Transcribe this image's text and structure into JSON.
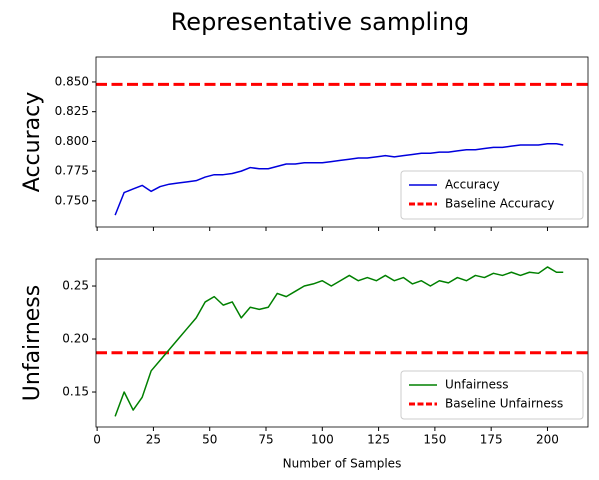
{
  "title": "Representative sampling",
  "chart_data": [
    {
      "type": "line",
      "ylabel": "Accuracy",
      "x": [
        8,
        12,
        16,
        20,
        24,
        28,
        32,
        36,
        40,
        44,
        48,
        52,
        56,
        60,
        64,
        68,
        72,
        76,
        80,
        84,
        88,
        92,
        96,
        100,
        104,
        108,
        112,
        116,
        120,
        124,
        128,
        132,
        136,
        140,
        144,
        148,
        152,
        156,
        160,
        164,
        168,
        172,
        176,
        180,
        184,
        188,
        192,
        196,
        200,
        204,
        207
      ],
      "series": [
        {
          "name": "Accuracy",
          "color": "#0000dd",
          "values": [
            0.738,
            0.757,
            0.76,
            0.763,
            0.758,
            0.762,
            0.764,
            0.765,
            0.766,
            0.767,
            0.77,
            0.772,
            0.772,
            0.773,
            0.775,
            0.778,
            0.777,
            0.777,
            0.779,
            0.781,
            0.781,
            0.782,
            0.782,
            0.782,
            0.783,
            0.784,
            0.785,
            0.786,
            0.786,
            0.787,
            0.788,
            0.787,
            0.788,
            0.789,
            0.79,
            0.79,
            0.791,
            0.791,
            0.792,
            0.793,
            0.793,
            0.794,
            0.795,
            0.795,
            0.796,
            0.797,
            0.797,
            0.797,
            0.798,
            0.798,
            0.797
          ]
        }
      ],
      "hlines": [
        {
          "name": "Baseline Accuracy",
          "color": "#ff0000",
          "value": 0.848
        }
      ],
      "xlim": [
        -0.5,
        218
      ],
      "xticks": [
        0,
        25,
        50,
        75,
        100,
        125,
        150,
        175,
        200
      ],
      "show_xtick_labels": false,
      "ylim": [
        0.728,
        0.871
      ],
      "yticks": [
        {
          "value": 0.75,
          "label": "0.750"
        },
        0.775,
        {
          "value": 0.8,
          "label": "0.800"
        },
        0.825,
        {
          "value": 0.85,
          "label": "0.850"
        }
      ],
      "legend": "lower right"
    },
    {
      "type": "line",
      "ylabel": "Unfairness",
      "xlabel": "Number of Samples",
      "x": [
        8,
        12,
        16,
        20,
        24,
        28,
        32,
        36,
        40,
        44,
        48,
        52,
        56,
        60,
        64,
        68,
        72,
        76,
        80,
        84,
        88,
        92,
        96,
        100,
        104,
        108,
        112,
        116,
        120,
        124,
        128,
        132,
        136,
        140,
        144,
        148,
        152,
        156,
        160,
        164,
        168,
        172,
        176,
        180,
        184,
        188,
        192,
        196,
        200,
        204,
        207
      ],
      "series": [
        {
          "name": "Unfairness",
          "color": "#008000",
          "values": [
            0.127,
            0.15,
            0.133,
            0.145,
            0.17,
            0.18,
            0.19,
            0.2,
            0.21,
            0.22,
            0.235,
            0.24,
            0.232,
            0.235,
            0.22,
            0.23,
            0.228,
            0.23,
            0.243,
            0.24,
            0.245,
            0.25,
            0.252,
            0.255,
            0.25,
            0.255,
            0.26,
            0.255,
            0.258,
            0.255,
            0.26,
            0.255,
            0.258,
            0.252,
            0.255,
            0.25,
            0.255,
            0.253,
            0.258,
            0.255,
            0.26,
            0.258,
            0.262,
            0.26,
            0.263,
            0.26,
            0.263,
            0.262,
            0.268,
            0.263,
            0.263
          ]
        }
      ],
      "hlines": [
        {
          "name": "Baseline Unfairness",
          "color": "#ff0000",
          "value": 0.187
        }
      ],
      "xlim": [
        -0.5,
        218
      ],
      "xticks": [
        0,
        25,
        50,
        75,
        100,
        125,
        150,
        175,
        200
      ],
      "show_xtick_labels": true,
      "ylim": [
        0.117,
        0.2755
      ],
      "yticks": [
        0.15,
        {
          "value": 0.2,
          "label": "0.20"
        },
        0.25
      ],
      "legend": "lower right"
    }
  ]
}
